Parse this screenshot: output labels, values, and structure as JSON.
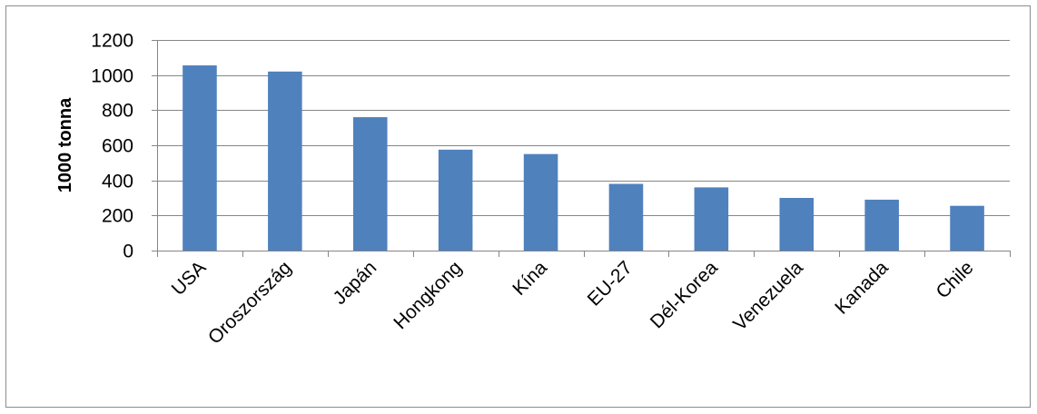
{
  "chart_data": {
    "type": "bar",
    "categories": [
      "USA",
      "Oroszország",
      "Japán",
      "Hongkong",
      "Kína",
      "EU-27",
      "Dél-Korea",
      "Venezuela",
      "Kanada",
      "Chile"
    ],
    "series": [
      {
        "values": [
          1055,
          1020,
          760,
          575,
          550,
          380,
          360,
          300,
          290,
          255
        ],
        "color": "#4f81bd"
      }
    ],
    "title": "",
    "xlabel": "",
    "ylabel": "1000 tonna",
    "ylim": [
      0,
      1200
    ],
    "yticks": [
      0,
      200,
      400,
      600,
      800,
      1000,
      1200
    ],
    "ytick_labels": [
      "0",
      "200",
      "400",
      "600",
      "800",
      "1000",
      "1200"
    ],
    "grid": "horizontal",
    "legend": "none",
    "colors": {
      "bar": "#4f81bd",
      "gridline": "#868686",
      "axis": "#868686",
      "frame": "#8c8c8c"
    }
  }
}
